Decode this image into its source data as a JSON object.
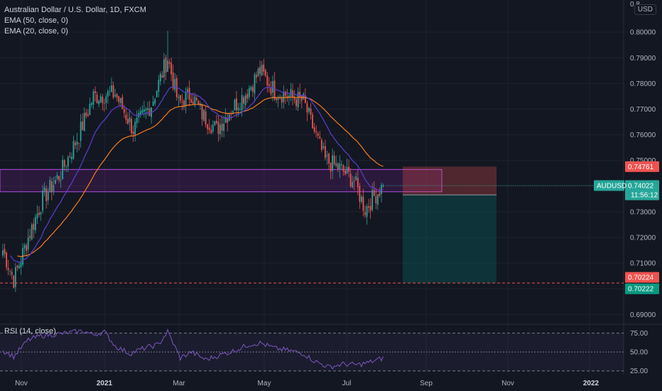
{
  "legend": {
    "title": "Australian Dollar / U.S. Dollar, 1D, FXCM",
    "ema50": "EMA (50, close, 0)",
    "ema20": "EMA (20, close, 0)"
  },
  "rsi_legend": "RSI (14, close)",
  "currency": "USD",
  "colors": {
    "background": "#131722",
    "grid": "#1e222d",
    "up": "#26a69a",
    "down": "#ef5350",
    "ema50": "#f57c20",
    "ema20": "#5b3fd0",
    "zone": "#9c27b0",
    "rsi_line": "#7e57c2",
    "stop_zone": "#ef5350",
    "target_zone": "#00897b"
  },
  "chart_data": {
    "type": "candlestick",
    "symbol": "AUDUSD",
    "timeframe": "1D",
    "y_ticks": [
      0.8,
      0.79,
      0.78,
      0.77,
      0.76,
      0.75,
      0.74,
      0.73,
      0.72,
      0.71,
      0.7,
      0.69
    ],
    "y_partial_tick": "0.8",
    "ylim": [
      0.6865,
      0.8125
    ],
    "x_ticks": [
      "Nov",
      "2021",
      "Mar",
      "May",
      "Jul",
      "Sep",
      "Nov",
      "2022"
    ],
    "last_price": {
      "label": "AUDUSD",
      "value": "0.74022",
      "countdown": "11:56:12"
    },
    "price_labels": [
      {
        "value": "0.74761",
        "kind": "stop"
      },
      {
        "value": "0.73659",
        "kind": "entry"
      },
      {
        "value": "0.70224",
        "kind": "line"
      },
      {
        "value": "0.70222",
        "kind": "target"
      }
    ],
    "horizontal_line": 0.70224,
    "resistance_zone": {
      "from": 0.7378,
      "to": 0.7465
    },
    "position": {
      "entry": 0.73659,
      "stop": 0.74761,
      "target": 0.70222
    },
    "anchors": [
      {
        "bar": 0,
        "price": 0.715
      },
      {
        "bar": 6,
        "price": 0.7035
      },
      {
        "bar": 14,
        "price": 0.72
      },
      {
        "bar": 22,
        "price": 0.735
      },
      {
        "bar": 32,
        "price": 0.745
      },
      {
        "bar": 42,
        "price": 0.76
      },
      {
        "bar": 50,
        "price": 0.775
      },
      {
        "bar": 62,
        "price": 0.776
      },
      {
        "bar": 72,
        "price": 0.762
      },
      {
        "bar": 82,
        "price": 0.772
      },
      {
        "bar": 91,
        "price": 0.79
      },
      {
        "bar": 97,
        "price": 0.772
      },
      {
        "bar": 104,
        "price": 0.776
      },
      {
        "bar": 110,
        "price": 0.768
      },
      {
        "bar": 118,
        "price": 0.762
      },
      {
        "bar": 126,
        "price": 0.77
      },
      {
        "bar": 134,
        "price": 0.776
      },
      {
        "bar": 142,
        "price": 0.785
      },
      {
        "bar": 150,
        "price": 0.777
      },
      {
        "bar": 158,
        "price": 0.775
      },
      {
        "bar": 166,
        "price": 0.773
      },
      {
        "bar": 170,
        "price": 0.765
      },
      {
        "bar": 178,
        "price": 0.75
      },
      {
        "bar": 186,
        "price": 0.747
      },
      {
        "bar": 194,
        "price": 0.742
      },
      {
        "bar": 200,
        "price": 0.731
      },
      {
        "bar": 205,
        "price": 0.736
      },
      {
        "bar": 210,
        "price": 0.7402
      }
    ],
    "rsi": {
      "levels": [
        75.0,
        50.0,
        25.0
      ],
      "tick_labels": [
        "75.00",
        "50.00",
        "25.00"
      ],
      "anchors": [
        {
          "bar": 0,
          "value": 52
        },
        {
          "bar": 6,
          "value": 44
        },
        {
          "bar": 14,
          "value": 66
        },
        {
          "bar": 22,
          "value": 72
        },
        {
          "bar": 32,
          "value": 74
        },
        {
          "bar": 44,
          "value": 78
        },
        {
          "bar": 50,
          "value": 73
        },
        {
          "bar": 56,
          "value": 77
        },
        {
          "bar": 62,
          "value": 58
        },
        {
          "bar": 70,
          "value": 48
        },
        {
          "bar": 78,
          "value": 55
        },
        {
          "bar": 86,
          "value": 60
        },
        {
          "bar": 91,
          "value": 77
        },
        {
          "bar": 98,
          "value": 42
        },
        {
          "bar": 104,
          "value": 50
        },
        {
          "bar": 112,
          "value": 40
        },
        {
          "bar": 120,
          "value": 46
        },
        {
          "bar": 128,
          "value": 52
        },
        {
          "bar": 136,
          "value": 60
        },
        {
          "bar": 142,
          "value": 62
        },
        {
          "bar": 150,
          "value": 55
        },
        {
          "bar": 158,
          "value": 52
        },
        {
          "bar": 166,
          "value": 48
        },
        {
          "bar": 172,
          "value": 38
        },
        {
          "bar": 180,
          "value": 30
        },
        {
          "bar": 188,
          "value": 34
        },
        {
          "bar": 196,
          "value": 33
        },
        {
          "bar": 202,
          "value": 36
        },
        {
          "bar": 210,
          "value": 42
        }
      ]
    }
  }
}
